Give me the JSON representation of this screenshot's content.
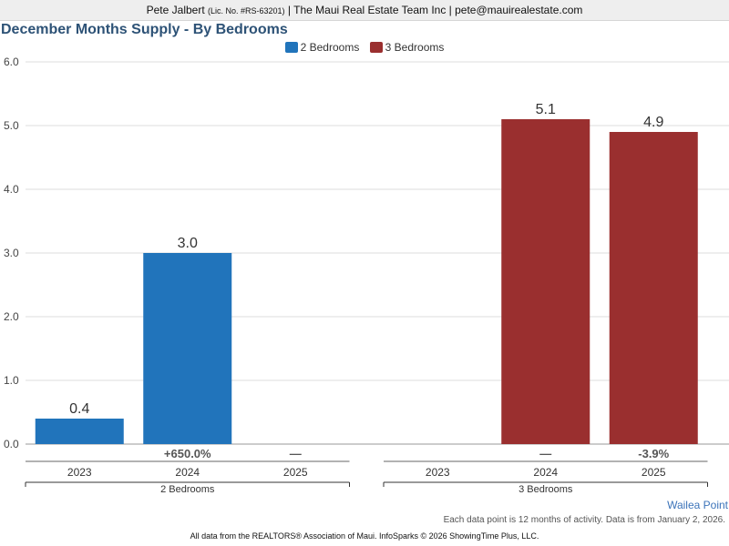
{
  "header": {
    "agent_name": "Pete Jalbert",
    "license": "(Lic. No. #RS-63201)",
    "company_email": "| The Maui Real Estate Team Inc | pete@mauirealestate.com"
  },
  "colors": {
    "two_bedrooms": "#2174bb",
    "three_bedrooms": "#9a2f2f",
    "title": "#2d5276",
    "footer_link": "#3b73b9"
  },
  "chart_data": {
    "type": "bar",
    "title": "December Months Supply - By Bedrooms",
    "ylim": [
      0,
      6
    ],
    "yticks": [
      "0.0",
      "1.0",
      "2.0",
      "3.0",
      "4.0",
      "5.0",
      "6.0"
    ],
    "grid": true,
    "legend_position": "top-center",
    "groups": [
      {
        "name": "2 Bedrooms",
        "color": "#2174bb",
        "categories": [
          "2023",
          "2024",
          "2025"
        ],
        "values": [
          0.4,
          3.0,
          null
        ],
        "value_labels": [
          "0.4",
          "3.0",
          ""
        ],
        "changes": [
          "",
          "+650.0%",
          "—"
        ]
      },
      {
        "name": "3 Bedrooms",
        "color": "#9a2f2f",
        "categories": [
          "2023",
          "2024",
          "2025"
        ],
        "values": [
          null,
          5.1,
          4.9
        ],
        "value_labels": [
          "",
          "5.1",
          "4.9"
        ],
        "changes": [
          "",
          "—",
          "-3.9%"
        ]
      }
    ],
    "legend": [
      "2 Bedrooms",
      "3 Bedrooms"
    ]
  },
  "footer": {
    "location": "Wailea Point",
    "note": "Each data point is 12 months of activity. Data is from January 2, 2026.",
    "credit": "All data from the REALTORS® Association of Maui. InfoSparks © 2026 ShowingTime Plus, LLC."
  }
}
